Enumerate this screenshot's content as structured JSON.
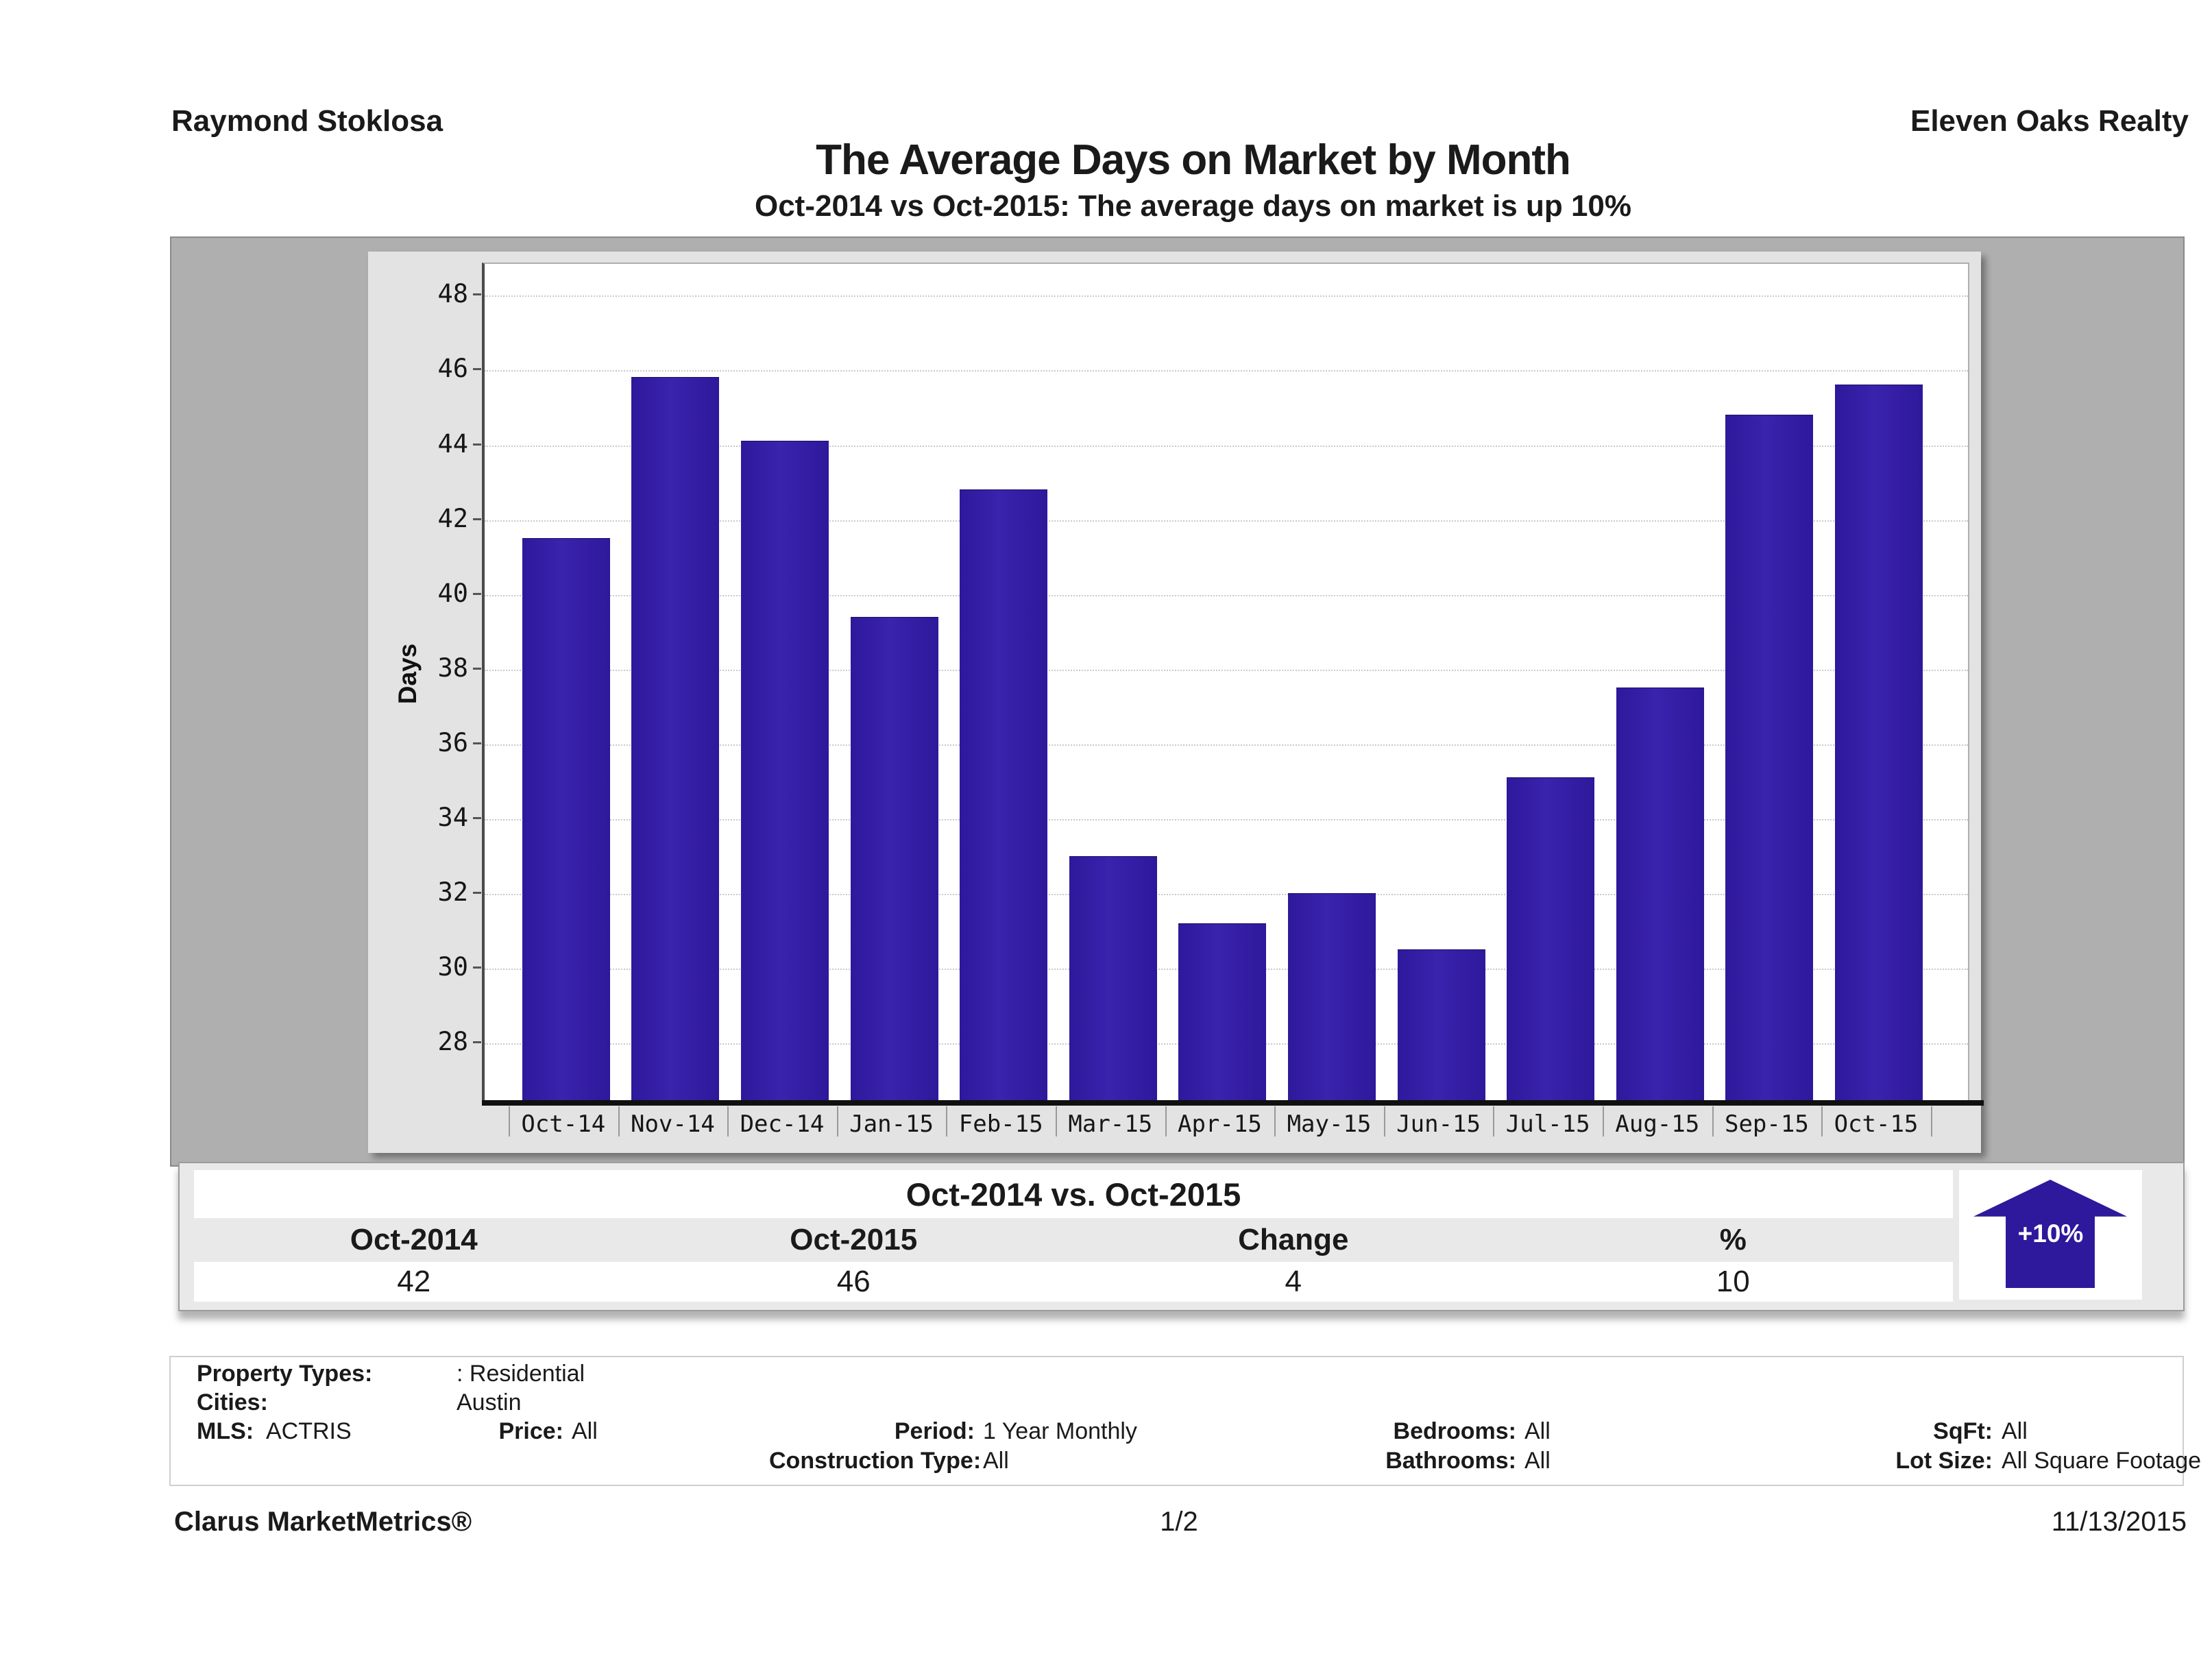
{
  "header": {
    "agent": "Raymond Stoklosa",
    "company": "Eleven Oaks Realty"
  },
  "title": "The Average Days on Market by Month",
  "subtitle": "Oct-2014 vs Oct-2015: The average days on market is up 10%",
  "chart_data": {
    "type": "bar",
    "title": "The Average Days on Market by Month",
    "xlabel": "",
    "ylabel": "Days",
    "categories": [
      "Oct-14",
      "Nov-14",
      "Dec-14",
      "Jan-15",
      "Feb-15",
      "Mar-15",
      "Apr-15",
      "May-15",
      "Jun-15",
      "Jul-15",
      "Aug-15",
      "Sep-15",
      "Oct-15"
    ],
    "values": [
      41.5,
      45.8,
      44.1,
      39.4,
      42.8,
      33.0,
      31.2,
      32.0,
      30.5,
      35.1,
      37.5,
      44.8,
      45.6
    ],
    "yticks": [
      28,
      30,
      32,
      34,
      36,
      38,
      40,
      42,
      44,
      46,
      48
    ],
    "ylim": [
      26.45,
      48.85
    ],
    "grid": "horizontal-dotted",
    "legend": "none",
    "bar_color": "#2e189b"
  },
  "summary": {
    "title": "Oct-2014 vs. Oct-2015",
    "columns": [
      "Oct-2014",
      "Oct-2015",
      "Change",
      "%"
    ],
    "values": [
      "42",
      "46",
      "4",
      "10"
    ]
  },
  "badge": {
    "label": "+10%",
    "direction": "up",
    "color": "#2e189b"
  },
  "criteria": {
    "property_types_label": "Property Types:",
    "property_types_value": ": Residential",
    "cities_label": "Cities:",
    "cities_value": "Austin",
    "mls_label": "MLS:",
    "mls_value": "ACTRIS",
    "price_label": "Price:",
    "price_value": "All",
    "period_label": "Period:",
    "period_value": "1 Year Monthly",
    "construction_type_label": "Construction Type:",
    "construction_type_value": "All",
    "bedrooms_label": "Bedrooms:",
    "bedrooms_value": "All",
    "bathrooms_label": "Bathrooms:",
    "bathrooms_value": "All",
    "sqft_label": "SqFt:",
    "sqft_value": "All",
    "lot_size_label": "Lot Size:",
    "lot_size_value": "All Square Footage"
  },
  "footer": {
    "brand": "Clarus MarketMetrics®",
    "page": "1/2",
    "date": "11/13/2015"
  }
}
